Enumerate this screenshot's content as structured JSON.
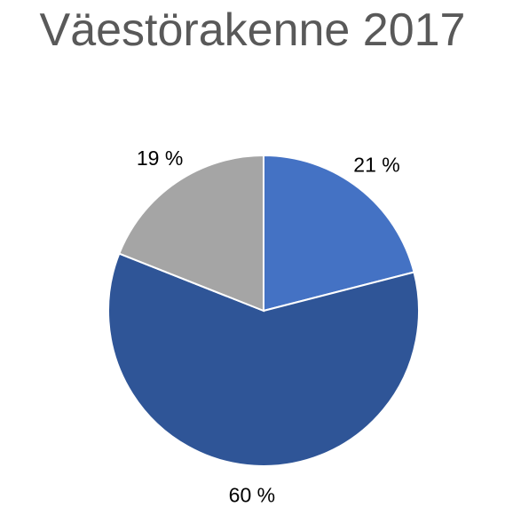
{
  "chart_data": {
    "type": "pie",
    "title": "Väestörakenne 2017",
    "slices": [
      {
        "label": "21 %",
        "value": 21,
        "color": "#4472C4"
      },
      {
        "label": "60 %",
        "value": 60,
        "color": "#2F5597"
      },
      {
        "label": "19 %",
        "value": 19,
        "color": "#A5A5A5"
      }
    ],
    "start_angle_deg": 0,
    "direction": "clockwise",
    "legend": "none"
  }
}
